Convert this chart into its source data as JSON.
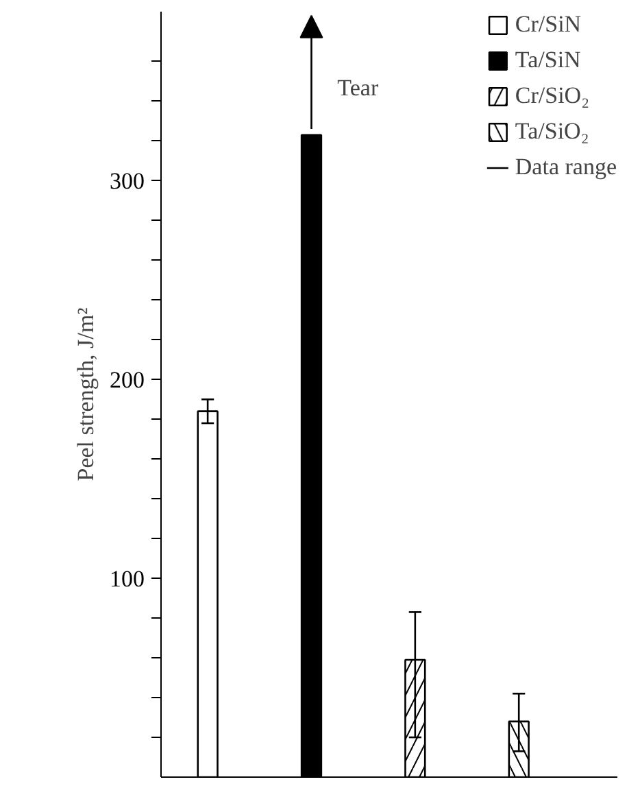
{
  "chart_data": {
    "type": "bar",
    "ylabel": "Peel strength, J/m²",
    "categories": [
      null,
      null,
      null,
      null
    ],
    "series": [
      {
        "name": "Cr/SiN",
        "color": "#ffffff",
        "values": [
          184,
          null,
          null,
          null
        ],
        "errors": [
          [
            178,
            190
          ],
          null,
          null,
          null
        ]
      },
      {
        "name": "Ta/SiN",
        "color": "#000000",
        "values": [
          null,
          323,
          null,
          null
        ]
      },
      {
        "name": "Cr/SiO₂",
        "color": "#ffffff",
        "values": [
          null,
          null,
          59,
          null
        ],
        "errors": [
          null,
          null,
          [
            20,
            83
          ],
          null
        ]
      },
      {
        "name": "Ta/SiO₂",
        "color": "#ffffff",
        "values": [
          null,
          null,
          null,
          28
        ],
        "errors": [
          null,
          null,
          null,
          [
            13,
            42
          ]
        ]
      }
    ],
    "annotations": [
      "Tear",
      "Data range"
    ],
    "ylim": [
      0,
      385
    ],
    "yticks": [
      {
        "value": 20,
        "label": null
      },
      {
        "value": 40,
        "label": null
      },
      {
        "value": 60,
        "label": null
      },
      {
        "value": 80,
        "label": null
      },
      100,
      {
        "value": 120,
        "label": null
      },
      {
        "value": 140,
        "label": null
      },
      {
        "value": 160,
        "label": null
      },
      {
        "value": 180,
        "label": null
      },
      200,
      {
        "value": 220,
        "label": null
      },
      {
        "value": 240,
        "label": null
      },
      {
        "value": 260,
        "label": null
      },
      {
        "value": 280,
        "label": null
      },
      300,
      {
        "value": 320,
        "label": null
      },
      {
        "value": 340,
        "label": null
      },
      {
        "value": 360,
        "label": null
      }
    ],
    "tick_labels": "y",
    "grid": false,
    "legend": "top right"
  }
}
